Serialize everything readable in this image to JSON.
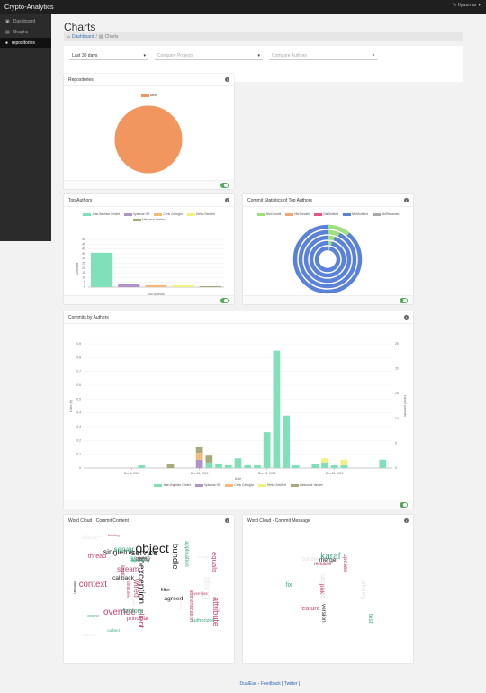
{
  "app": {
    "brand": "Crypto-Analytics",
    "user": "Ilyasmar"
  },
  "sidebar": {
    "items": [
      {
        "label": "Dashboard"
      },
      {
        "label": "Graphs"
      },
      {
        "label": "repositories"
      }
    ]
  },
  "page": {
    "title": "Charts",
    "breadcrumb": {
      "home": "Dashboard",
      "sep": "/",
      "current": "Charts"
    }
  },
  "filters": {
    "range": "Last 30 days",
    "projects_placeholder": "Compare Projects",
    "authors_placeholder": "Compare Authors"
  },
  "repositories": {
    "title": "Repositories"
  },
  "top_authors": {
    "title": "Top Authors"
  },
  "commit_stats": {
    "title": "Commit Statistics of Top Authors"
  },
  "commits_by_authors": {
    "title": "Commits by Authors"
  },
  "wordcloud_content": {
    "title": "Word Cloud - Commit Content",
    "words": [
      {
        "t": "object",
        "c": "#222"
      },
      {
        "t": "ioexception",
        "c": "#222"
      },
      {
        "t": "string",
        "c": "#e8e8e8"
      },
      {
        "t": "override",
        "c": "#c04470"
      },
      {
        "t": "context",
        "c": "#c04470"
      },
      {
        "t": "bundle",
        "c": "#222"
      },
      {
        "t": "service",
        "c": "#222"
      },
      {
        "t": "attribute",
        "c": "#c04470"
      },
      {
        "t": "client",
        "c": "#c04470"
      },
      {
        "t": "wired",
        "c": "#c04470"
      },
      {
        "t": "singleton",
        "c": "#222"
      },
      {
        "t": "assert",
        "c": "#3aaa7e"
      },
      {
        "t": "server",
        "c": "#3aaa7e"
      },
      {
        "t": "stream",
        "c": "#c04470"
      },
      {
        "t": "equals",
        "c": "#c04470"
      },
      {
        "t": "array",
        "c": "#c04470"
      },
      {
        "t": "factory",
        "c": "#3aaa7e"
      },
      {
        "t": "thread",
        "c": "#c04470"
      },
      {
        "t": "class",
        "c": "#e8e8e8"
      },
      {
        "t": "agreed",
        "c": "#222"
      },
      {
        "t": "callback",
        "c": "#222"
      },
      {
        "t": "principal",
        "c": "#c04470"
      },
      {
        "t": "apache",
        "c": "#3aaa7e"
      },
      {
        "t": "application",
        "c": "#3aaa7e"
      },
      {
        "t": "authentication",
        "c": "#c04470"
      },
      {
        "t": "authorized",
        "c": "#3aaa7e"
      },
      {
        "t": "filter",
        "c": "#222"
      },
      {
        "t": "karaf",
        "c": "#c04470"
      },
      {
        "t": "cluster",
        "c": "#e8e8e8"
      },
      {
        "t": "collect",
        "c": "#3aaa7e"
      },
      {
        "t": "attributes",
        "c": "#c04470"
      },
      {
        "t": "instance",
        "c": "#e8e8e8"
      },
      {
        "t": "overrides",
        "c": "#c04470"
      },
      {
        "t": "closing",
        "c": "#3aaa7e"
      },
      {
        "t": "binding",
        "c": "#c04470"
      },
      {
        "t": "remote",
        "c": "#e8e8e8"
      },
      {
        "t": "change",
        "c": "#e8e8e8"
      },
      {
        "t": "java",
        "c": "#e8e8e8"
      },
      {
        "t": "checkin",
        "c": "#222"
      }
    ]
  },
  "wordcloud_message": {
    "title": "Word Cloud - Commit Message",
    "words": [
      {
        "t": "karaf",
        "c": "#3aaa7e"
      },
      {
        "t": "upgrade",
        "c": "#e0e0e0"
      },
      {
        "t": "cherry",
        "c": "#e0e0e0"
      },
      {
        "t": "feature",
        "c": "#c04470"
      },
      {
        "t": "fix",
        "c": "#3aaa7e"
      },
      {
        "t": "update",
        "c": "#c04470"
      },
      {
        "t": "merge",
        "c": "#222"
      },
      {
        "t": "test",
        "c": "#3aaa7e"
      },
      {
        "t": "version",
        "c": "#222"
      },
      {
        "t": "pick",
        "c": "#c04470"
      },
      {
        "t": "bundle",
        "c": "#e0e0e0"
      },
      {
        "t": "release",
        "c": "#c04470"
      }
    ]
  },
  "chart_data": [
    {
      "type": "pie",
      "title": "Repositories",
      "labels": [
        "karaf"
      ],
      "values": [
        100
      ],
      "colors": [
        "#f0965e"
      ]
    },
    {
      "type": "bar",
      "title": "Top Authors",
      "categories": [
        "Jean-Baptiste Onofré",
        "Ilyasmar HR",
        "Cenk Cetingöz",
        "Heiko Seuffert",
        "Aleksandr Vasilev"
      ],
      "values": [
        36,
        3,
        2,
        2,
        1
      ],
      "colors": [
        "#7fe0b9",
        "#b094c8",
        "#f2b97a",
        "#f2f07e",
        "#a8a878"
      ],
      "xlabel": "Top Authors",
      "ylabel": "Commits",
      "ylim": [
        0,
        50
      ],
      "yticks": [
        0,
        5,
        10,
        15,
        20,
        25,
        30,
        35,
        40,
        45,
        50
      ]
    },
    {
      "type": "pie",
      "title": "Commit Statistics of Top Authors",
      "labels": [
        "NbrCommit",
        "NbrCreated",
        "NbrDeleted",
        "NbrModified",
        "NbrRenamed"
      ],
      "colors": [
        "#9ee07a",
        "#f2a56e",
        "#e2548a",
        "#5a82d8",
        "#a8a8a8"
      ],
      "rings": [
        [
          0.11,
          0.89
        ],
        [
          0.07,
          0.93
        ],
        [
          0.05,
          0.95
        ],
        [
          0.04,
          0.96
        ],
        [
          0.03,
          0.97
        ]
      ]
    },
    {
      "type": "bar",
      "title": "Commits by Authors",
      "xlabel": "Date",
      "ylabel_left": "Lines (K)",
      "ylabel_right": "Nbr of commits",
      "xticks": [
        "Dec 8, 2019",
        "Dec 15, 2019",
        "Dec 22, 2019",
        "Dec 29, 2019"
      ],
      "xtick_days": [
        7,
        14,
        21,
        28
      ],
      "ylim": [
        0,
        0.9
      ],
      "yticks": [
        0,
        0.1,
        0.2,
        0.3,
        0.4,
        0.5,
        0.6,
        0.7,
        0.8,
        0.9
      ],
      "ylim_right": [
        0,
        25
      ],
      "yticks_right": [
        0,
        5,
        10,
        15,
        20,
        25
      ],
      "series": [
        {
          "name": "Jean-Baptiste Onofré",
          "color": "#7fe0b9",
          "points": [
            [
              8,
              0.02
            ],
            [
              15,
              0.04
            ],
            [
              16,
              0.03
            ],
            [
              17,
              0.02
            ],
            [
              18,
              0.07
            ],
            [
              19,
              0.02
            ],
            [
              20,
              0.02
            ],
            [
              21,
              0.26
            ],
            [
              22,
              0.85
            ],
            [
              23,
              0.38
            ],
            [
              24,
              0.02
            ],
            [
              26,
              0.03
            ],
            [
              27,
              0.04
            ],
            [
              28,
              0.02
            ],
            [
              29,
              0.02
            ],
            [
              33,
              0.06
            ]
          ]
        },
        {
          "name": "Ilyasmar HR",
          "color": "#b094c8",
          "points": [
            [
              14,
              0.06
            ]
          ]
        },
        {
          "name": "Cenk Cetingöz",
          "color": "#f2b97a",
          "points": [
            [
              14,
              0.05
            ]
          ]
        },
        {
          "name": "Heiko Seuffert",
          "color": "#f2f07e",
          "points": [
            [
              27,
              0.03
            ],
            [
              29,
              0.04
            ]
          ]
        },
        {
          "name": "Aleksandr Vasilev",
          "color": "#a8a878",
          "points": [
            [
              11,
              0.03
            ],
            [
              14,
              0.04
            ],
            [
              15,
              0.05
            ]
          ]
        }
      ]
    }
  ]
}
